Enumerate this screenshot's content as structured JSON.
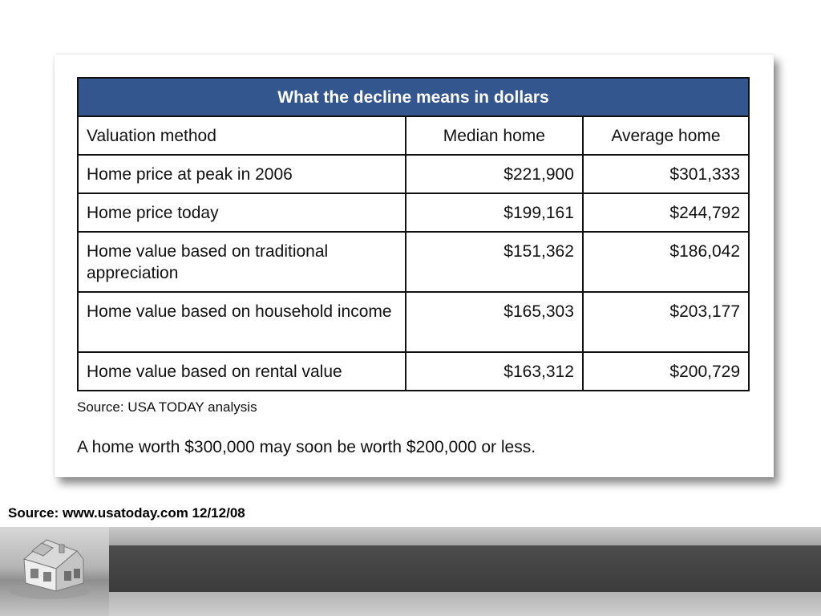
{
  "table": {
    "title": "What the decline means in dollars",
    "columns": [
      "Valuation method",
      "Median home",
      "Average home"
    ],
    "rows": [
      {
        "method": "Home price at peak in 2006",
        "median": "$221,900",
        "average": "$301,333"
      },
      {
        "method": "Home price today",
        "median": "$199,161",
        "average": "$244,792"
      },
      {
        "method": "Home value based on traditional appreciation",
        "median": "$151,362",
        "average": "$186,042"
      },
      {
        "method": "Home value based on household income",
        "median": "$165,303",
        "average": "$203,177"
      },
      {
        "method": "Home value based on rental value",
        "median": "$163,312",
        "average": "$200,729"
      }
    ]
  },
  "source_note": "Source: USA TODAY analysis",
  "headline": "A home worth $300,000 may soon be worth $200,000 or less.",
  "page_source": "Source: www.usatoday.com 12/12/08",
  "colors": {
    "title_bar": "#34568f",
    "footer_dark": "#3b3b3b",
    "footer_light": "#b3b3b3"
  },
  "decor": {
    "footer_icon": "house-icon"
  }
}
